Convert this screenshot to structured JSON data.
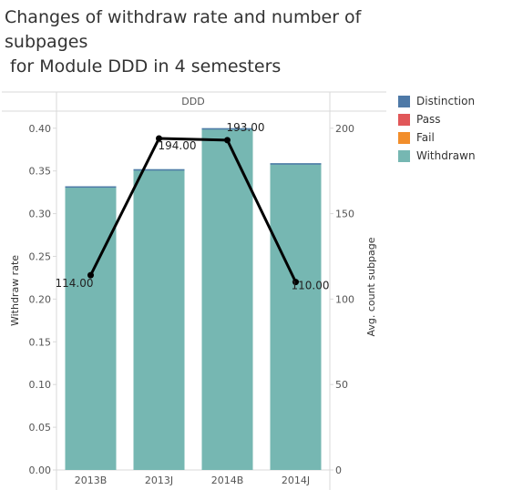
{
  "title_lines": [
    "Changes of withdraw rate and number of",
    "subpages",
    " for Module DDD in 4 semesters"
  ],
  "legend": [
    {
      "label": "Distinction",
      "color": "#4e79a7"
    },
    {
      "label": "Pass",
      "color": "#e15759"
    },
    {
      "label": "Fail",
      "color": "#f28e2b"
    },
    {
      "label": "Withdrawn",
      "color": "#76b7b2"
    }
  ],
  "chart_data": {
    "type": "bar",
    "title": "Changes of withdraw rate and number of subpages\n for Module DDD in 4 semesters",
    "panel_header": "DDD",
    "categories": [
      "2013B",
      "2013J",
      "2014B",
      "2014J"
    ],
    "bar_series": {
      "name": "Withdrawn",
      "values": [
        0.332,
        0.352,
        0.4,
        0.359
      ]
    },
    "line_series": {
      "values": [
        114,
        194,
        193,
        110
      ],
      "labels": [
        "114.00",
        "194.00",
        "193.00",
        "110.00"
      ]
    },
    "y_left": {
      "label": "Withdraw rate",
      "ylim": [
        0,
        0.42
      ],
      "ticks": [
        "0.00",
        "0.05",
        "0.10",
        "0.15",
        "0.20",
        "0.25",
        "0.30",
        "0.35",
        "0.40"
      ]
    },
    "y_right": {
      "label": "Avg. count subpage",
      "ylim": [
        0,
        210
      ],
      "ticks": [
        "0",
        "50",
        "100",
        "150",
        "200"
      ]
    },
    "grid": false,
    "legend_position": "right"
  }
}
